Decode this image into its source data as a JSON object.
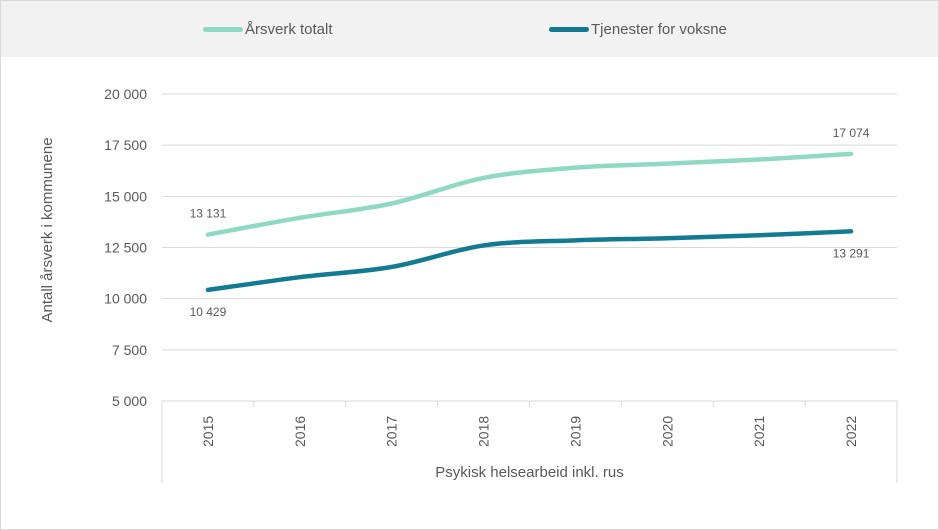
{
  "chart_data": {
    "type": "line",
    "categories": [
      "2015",
      "2016",
      "2017",
      "2018",
      "2019",
      "2020",
      "2021",
      "2022"
    ],
    "group_label": "Psykisk helsearbeid inkl. rus",
    "ylabel": "Antall årsverk i kommunene",
    "ylim": [
      5000,
      20000
    ],
    "yticks": [
      5000,
      7500,
      10000,
      12500,
      15000,
      17500,
      20000
    ],
    "ytick_labels": [
      "5 000",
      "7 500",
      "10 000",
      "12 500",
      "15 000",
      "17 500",
      "20 000"
    ],
    "grid": true,
    "legend_position": "top",
    "series": [
      {
        "name": "Årsverk totalt",
        "color": "#8fd9c3",
        "values": [
          13131,
          13950,
          14650,
          15900,
          16400,
          16600,
          16800,
          17074
        ],
        "data_labels": [
          {
            "index": 0,
            "text": "13 131",
            "placement": "above"
          },
          {
            "index": 7,
            "text": "17 074",
            "placement": "above"
          }
        ]
      },
      {
        "name": "Tjenester for voksne",
        "color": "#137b91",
        "values": [
          10429,
          11050,
          11550,
          12600,
          12850,
          12950,
          13100,
          13291
        ],
        "data_labels": [
          {
            "index": 0,
            "text": "10 429",
            "placement": "below"
          },
          {
            "index": 7,
            "text": "13 291",
            "placement": "below"
          }
        ]
      }
    ]
  }
}
